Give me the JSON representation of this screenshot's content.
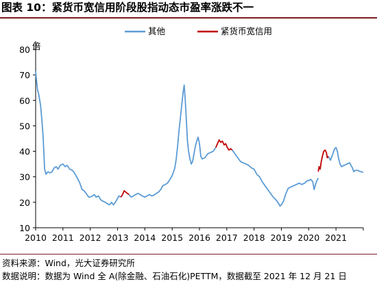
{
  "header": {
    "title": "图表 10：紧货币宽信用阶段股指动态市盈率涨跌不一"
  },
  "footer": {
    "source": "资料来源：Wind，光大证券研究所",
    "note": "数据说明：数据为 Wind 全 A(除金融、石油石化)PETTM，数据截至 2021 年 12 月 21 日"
  },
  "chart_data": {
    "type": "line",
    "title": "",
    "xlabel": "",
    "ylabel": "倍",
    "ylim": [
      10,
      80
    ],
    "xlim": [
      2010.0,
      2022.0
    ],
    "yticks": [
      10,
      20,
      30,
      40,
      50,
      60,
      70,
      80
    ],
    "xticks": [
      "2010",
      "2011",
      "2012",
      "2013",
      "2014",
      "2015",
      "2016",
      "2017",
      "2018",
      "2019",
      "2020",
      "2021"
    ],
    "grid": false,
    "legend_position": "top-center",
    "series": [
      {
        "name": "其他",
        "color": "#5b9bd5",
        "segments": [
          [
            [
              2010.0,
              71.5
            ],
            [
              2010.03,
              68
            ],
            [
              2010.07,
              64
            ],
            [
              2010.12,
              62
            ],
            [
              2010.18,
              58
            ],
            [
              2010.23,
              52
            ],
            [
              2010.27,
              46
            ],
            [
              2010.3,
              40
            ],
            [
              2010.33,
              33
            ],
            [
              2010.38,
              31
            ],
            [
              2010.45,
              32
            ],
            [
              2010.52,
              31.5
            ],
            [
              2010.6,
              32
            ],
            [
              2010.68,
              33.5
            ],
            [
              2010.75,
              34
            ],
            [
              2010.82,
              33
            ],
            [
              2010.9,
              34.5
            ],
            [
              2011.0,
              35
            ],
            [
              2011.08,
              34
            ],
            [
              2011.15,
              34.5
            ],
            [
              2011.25,
              33
            ],
            [
              2011.35,
              32.5
            ],
            [
              2011.45,
              31
            ],
            [
              2011.55,
              29
            ],
            [
              2011.62,
              27.5
            ],
            [
              2011.7,
              25
            ],
            [
              2011.78,
              24.5
            ],
            [
              2011.88,
              23
            ],
            [
              2011.95,
              22
            ],
            [
              2012.0,
              22
            ],
            [
              2012.08,
              22.5
            ],
            [
              2012.15,
              23
            ],
            [
              2012.22,
              22
            ],
            [
              2012.3,
              22.5
            ],
            [
              2012.38,
              21
            ],
            [
              2012.45,
              20.5
            ],
            [
              2012.55,
              20
            ],
            [
              2012.62,
              19.5
            ],
            [
              2012.7,
              19
            ],
            [
              2012.78,
              20
            ],
            [
              2012.85,
              19
            ],
            [
              2012.92,
              20
            ],
            [
              2013.0,
              21.5
            ],
            [
              2013.05,
              22.5
            ],
            [
              2013.12,
              22
            ]
          ],
          [
            [
              2013.42,
              23
            ],
            [
              2013.5,
              22
            ],
            [
              2013.58,
              22.5
            ],
            [
              2013.66,
              23
            ],
            [
              2013.75,
              23.5
            ],
            [
              2013.83,
              23
            ],
            [
              2013.9,
              22.5
            ],
            [
              2014.0,
              22
            ],
            [
              2014.08,
              22.5
            ],
            [
              2014.17,
              23
            ],
            [
              2014.25,
              22.5
            ],
            [
              2014.33,
              22.8
            ],
            [
              2014.42,
              23.5
            ],
            [
              2014.5,
              24
            ],
            [
              2014.58,
              25
            ],
            [
              2014.66,
              26.5
            ],
            [
              2014.75,
              27
            ],
            [
              2014.83,
              27.5
            ],
            [
              2014.92,
              29
            ],
            [
              2015.0,
              30.5
            ],
            [
              2015.05,
              32
            ],
            [
              2015.1,
              33.5
            ],
            [
              2015.15,
              37
            ],
            [
              2015.2,
              42
            ],
            [
              2015.25,
              48
            ],
            [
              2015.3,
              53
            ],
            [
              2015.35,
              58
            ],
            [
              2015.4,
              63
            ],
            [
              2015.44,
              66
            ],
            [
              2015.48,
              60
            ],
            [
              2015.52,
              52
            ],
            [
              2015.56,
              44
            ],
            [
              2015.6,
              40
            ],
            [
              2015.65,
              37
            ],
            [
              2015.7,
              35
            ],
            [
              2015.75,
              36
            ],
            [
              2015.8,
              39
            ],
            [
              2015.85,
              42
            ],
            [
              2015.9,
              44
            ],
            [
              2015.95,
              45.5
            ],
            [
              2016.0,
              43
            ],
            [
              2016.05,
              38
            ],
            [
              2016.1,
              37
            ],
            [
              2016.2,
              37.5
            ],
            [
              2016.3,
              39
            ],
            [
              2016.4,
              39.5
            ],
            [
              2016.5,
              40
            ],
            [
              2016.6,
              41.5
            ]
          ],
          [
            [
              2017.2,
              40.5
            ],
            [
              2017.3,
              39
            ],
            [
              2017.4,
              37.5
            ],
            [
              2017.5,
              36
            ],
            [
              2017.6,
              35.5
            ],
            [
              2017.7,
              35
            ],
            [
              2017.8,
              34.5
            ],
            [
              2017.9,
              33.5
            ],
            [
              2018.0,
              33
            ],
            [
              2018.1,
              31
            ],
            [
              2018.2,
              30
            ],
            [
              2018.3,
              28
            ],
            [
              2018.4,
              26.5
            ],
            [
              2018.5,
              25
            ],
            [
              2018.6,
              23.5
            ],
            [
              2018.7,
              22
            ],
            [
              2018.8,
              21
            ],
            [
              2018.9,
              19.5
            ],
            [
              2018.95,
              18.5
            ],
            [
              2019.0,
              19
            ],
            [
              2019.08,
              20.5
            ],
            [
              2019.15,
              23
            ],
            [
              2019.25,
              25.5
            ],
            [
              2019.35,
              26
            ],
            [
              2019.45,
              26.5
            ],
            [
              2019.55,
              27
            ],
            [
              2019.65,
              27.5
            ],
            [
              2019.75,
              27
            ],
            [
              2019.85,
              27.5
            ],
            [
              2019.95,
              28.5
            ],
            [
              2020.0,
              28.5
            ],
            [
              2020.08,
              29
            ],
            [
              2020.15,
              28
            ],
            [
              2020.2,
              25
            ],
            [
              2020.25,
              27
            ],
            [
              2020.3,
              28.5
            ],
            [
              2020.35,
              29.5
            ]
          ],
          [
            [
              2020.72,
              38
            ],
            [
              2020.8,
              36.5
            ],
            [
              2020.85,
              38
            ],
            [
              2020.9,
              39.5
            ],
            [
              2020.95,
              41
            ],
            [
              2021.0,
              41.5
            ],
            [
              2021.05,
              40
            ],
            [
              2021.1,
              37
            ],
            [
              2021.15,
              35
            ],
            [
              2021.2,
              34
            ],
            [
              2021.3,
              34.5
            ],
            [
              2021.4,
              35
            ],
            [
              2021.5,
              35.5
            ],
            [
              2021.55,
              34.5
            ],
            [
              2021.6,
              33.5
            ],
            [
              2021.65,
              32
            ],
            [
              2021.7,
              32.5
            ],
            [
              2021.8,
              32.5
            ],
            [
              2021.9,
              32
            ],
            [
              2022.0,
              31.8
            ]
          ]
        ]
      },
      {
        "name": "紧货币宽信用",
        "color": "#c00000",
        "segments": [
          [
            [
              2013.12,
              22
            ],
            [
              2013.18,
              23
            ],
            [
              2013.24,
              24.5
            ],
            [
              2013.3,
              24
            ],
            [
              2013.36,
              23.5
            ],
            [
              2013.42,
              23
            ]
          ],
          [
            [
              2016.6,
              41.5
            ],
            [
              2016.66,
              43
            ],
            [
              2016.72,
              44.5
            ],
            [
              2016.78,
              43.5
            ],
            [
              2016.84,
              44
            ],
            [
              2016.9,
              42.5
            ],
            [
              2016.96,
              43
            ],
            [
              2017.02,
              41.5
            ],
            [
              2017.08,
              40.5
            ],
            [
              2017.14,
              41
            ],
            [
              2017.2,
              40.5
            ]
          ],
          [
            [
              2020.35,
              32
            ],
            [
              2020.38,
              34
            ],
            [
              2020.42,
              33
            ],
            [
              2020.46,
              36
            ],
            [
              2020.5,
              38
            ],
            [
              2020.55,
              40
            ],
            [
              2020.6,
              40.5
            ],
            [
              2020.65,
              39.5
            ],
            [
              2020.68,
              37.5
            ],
            [
              2020.72,
              38
            ]
          ]
        ]
      }
    ]
  }
}
